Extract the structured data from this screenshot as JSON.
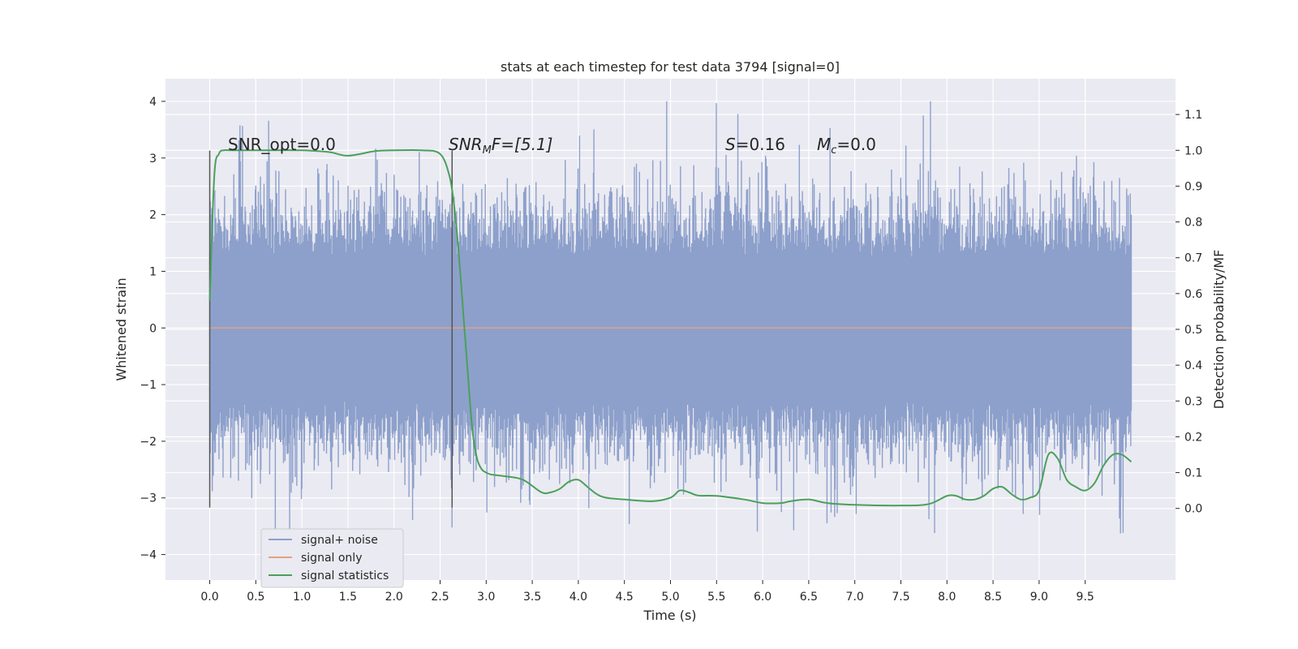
{
  "chart_data": {
    "type": "line",
    "title": "stats at each timestep for test data 3794 [signal=0]",
    "xlabel": "Time (s)",
    "ylabel_left": "Whitened strain",
    "ylabel_right": "Detection probability/MF",
    "xlim": [
      -0.48,
      10.48
    ],
    "ylim_left": [
      -4.45,
      4.4
    ],
    "ylim_right": [
      -0.2,
      1.2
    ],
    "x_ticks": [
      "0.0",
      "0.5",
      "1.0",
      "1.5",
      "2.0",
      "2.5",
      "3.0",
      "3.5",
      "4.0",
      "4.5",
      "5.0",
      "5.5",
      "6.0",
      "6.5",
      "7.0",
      "7.5",
      "8.0",
      "8.5",
      "9.0",
      "9.5"
    ],
    "y_ticks_left": [
      "4",
      "3",
      "2",
      "1",
      "0",
      "−1",
      "−2",
      "−3",
      "−4"
    ],
    "y_ticks_right": [
      "1.1",
      "1.0",
      "0.9",
      "0.8",
      "0.7",
      "0.6",
      "0.5",
      "0.4",
      "0.3",
      "0.2",
      "0.1",
      "0.0"
    ],
    "annotations": {
      "snr_opt": "SNR_opt=0.0",
      "snr_mf_base": "SNR",
      "snr_mf_sub": "M",
      "snr_mf_tail": "F=[5.1]",
      "s_base": "S",
      "s_tail": "=0.16",
      "mc_base": "M",
      "mc_sub": "c",
      "mc_tail": "=0.0"
    },
    "vlines_x": [
      0.0,
      2.63
    ],
    "series": [
      {
        "name": "signal+ noise",
        "color": "#8da0cb",
        "x_range": [
          0.0,
          10.0
        ],
        "band": [
          -1.3,
          1.25
        ],
        "envelope": [
          2.3,
          -2.6
        ],
        "peak_max": 4.0,
        "peak_min": -4.05
      },
      {
        "name": "signal only",
        "color": "#e5a085",
        "x": [
          0.0,
          10.0
        ],
        "values": [
          0.0,
          0.0
        ]
      },
      {
        "name": "signal statistics",
        "color": "#4aa05a",
        "axis": "right",
        "x": [
          0.0,
          0.05,
          0.1,
          0.15,
          0.25,
          0.5,
          1.0,
          1.3,
          1.5,
          1.8,
          2.0,
          2.3,
          2.5,
          2.6,
          2.65,
          2.7,
          2.75,
          2.8,
          2.85,
          2.9,
          2.95,
          3.0,
          3.05,
          3.1,
          3.2,
          3.4,
          3.6,
          3.7,
          3.8,
          3.9,
          4.0,
          4.1,
          4.2,
          4.3,
          4.5,
          4.8,
          5.0,
          5.1,
          5.2,
          5.3,
          5.5,
          5.8,
          6.0,
          6.2,
          6.3,
          6.5,
          6.7,
          7.0,
          7.5,
          7.8,
          8.0,
          8.1,
          8.2,
          8.3,
          8.4,
          8.5,
          8.6,
          8.7,
          8.8,
          8.9,
          9.0,
          9.1,
          9.2,
          9.3,
          9.4,
          9.5,
          9.6,
          9.7,
          9.8,
          9.9,
          10.0
        ],
        "values": [
          0.58,
          0.93,
          0.99,
          1.0,
          1.0,
          1.0,
          1.0,
          0.995,
          0.985,
          0.998,
          1.0,
          1.0,
          0.99,
          0.93,
          0.85,
          0.72,
          0.55,
          0.38,
          0.22,
          0.14,
          0.11,
          0.1,
          0.095,
          0.093,
          0.09,
          0.08,
          0.045,
          0.045,
          0.055,
          0.075,
          0.08,
          0.06,
          0.04,
          0.03,
          0.025,
          0.02,
          0.03,
          0.05,
          0.045,
          0.036,
          0.035,
          0.025,
          0.015,
          0.015,
          0.02,
          0.025,
          0.015,
          0.01,
          0.008,
          0.012,
          0.035,
          0.035,
          0.025,
          0.025,
          0.035,
          0.055,
          0.06,
          0.04,
          0.025,
          0.03,
          0.05,
          0.15,
          0.14,
          0.08,
          0.06,
          0.05,
          0.07,
          0.12,
          0.15,
          0.15,
          0.13
        ]
      }
    ],
    "legend": {
      "placement": "lower-left",
      "entries": [
        "signal+ noise",
        "signal only",
        "signal statistics"
      ]
    },
    "grid": true
  },
  "colors": {
    "plot_background": "#eaeaf2",
    "grid": "#ffffff",
    "vline": "#555555"
  }
}
